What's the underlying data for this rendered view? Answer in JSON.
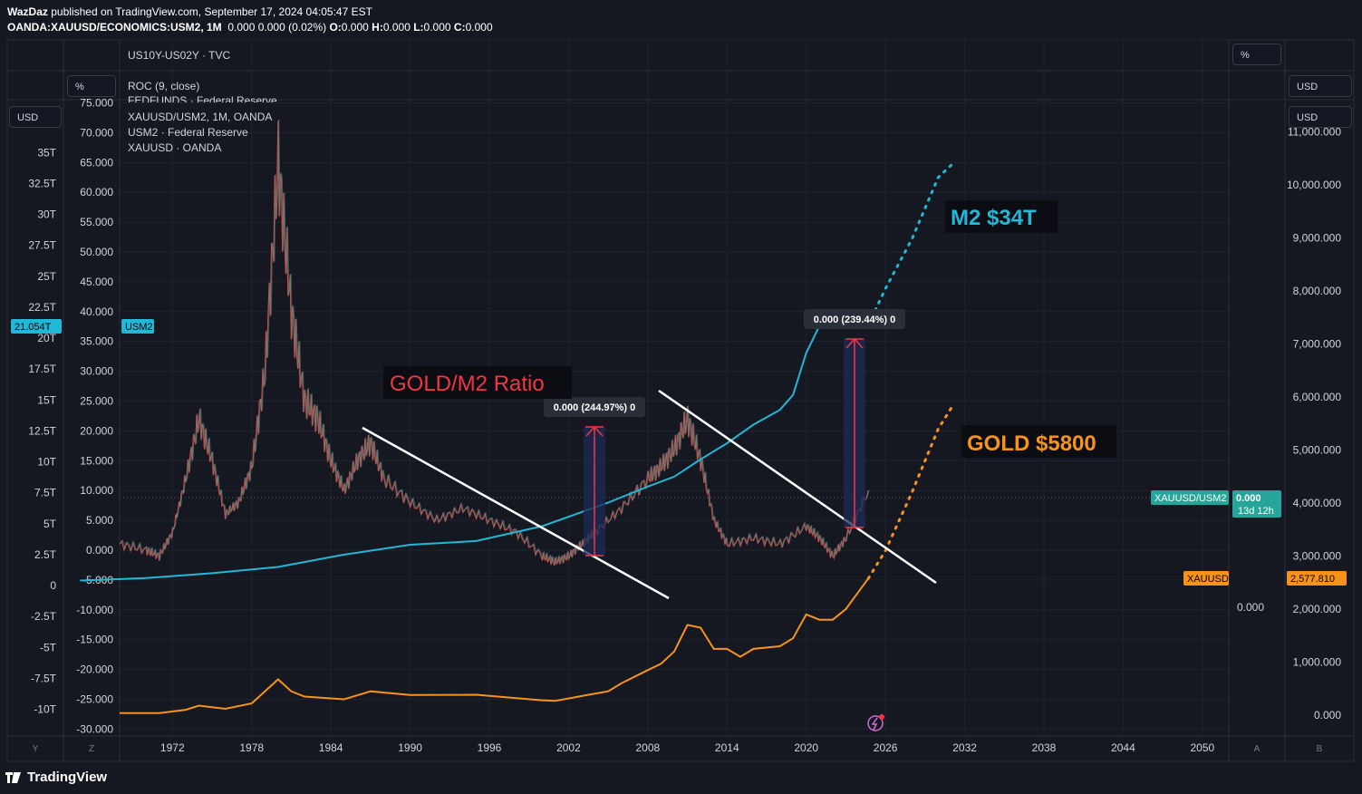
{
  "header": {
    "author": "WazDaz",
    "published": "published on TradingView.com, September 17, 2024 04:05:47 EST",
    "symbol": "OANDA:XAUUSD/ECONOMICS:USM2, 1M",
    "ohlc": "0.000 0.000 (0.02%)",
    "o_label": "O:",
    "o_value": "0.000",
    "h_label": "H:",
    "h_value": "0.000",
    "l_label": "L:",
    "l_value": "0.000",
    "c_label": "C:",
    "c_value": "0.000"
  },
  "panes": {
    "top_indicator": "US10Y-US02Y · TVC",
    "roc_indicator": "ROC (9, close)",
    "fedfunds_indicator": "FEDFUNDS · Federal Reserve",
    "main_series": "XAUUSD/USM2, 1M, OANDA",
    "m2_series": "USM2 · Federal Reserve",
    "gold_series": "XAUUSD · OANDA"
  },
  "buttons": {
    "pct_top_right": "%",
    "pct_left": "%",
    "usd_left": "USD",
    "usd_right_1": "USD",
    "usd_right_2": "USD"
  },
  "axes": {
    "m2_ticks": [
      "35T",
      "32.5T",
      "30T",
      "27.5T",
      "25T",
      "22.5T",
      "20T",
      "17.5T",
      "15T",
      "12.5T",
      "10T",
      "7.5T",
      "5T",
      "2.5T",
      "0",
      "-2.5T",
      "-5T",
      "-7.5T",
      "-10T"
    ],
    "ratio_ticks": [
      "75.000",
      "70.000",
      "65.000",
      "60.000",
      "55.000",
      "50.000",
      "45.000",
      "40.000",
      "35.000",
      "30.000",
      "25.000",
      "20.000",
      "15.000",
      "10.000",
      "5.000",
      "0.000",
      "-5.000",
      "-10.000",
      "-15.000",
      "-20.000",
      "-25.000",
      "-30.000"
    ],
    "gold_ticks": [
      "11,000.000",
      "10,000.000",
      "9,000.000",
      "8,000.000",
      "7,000.000",
      "6,000.000",
      "5,000.000",
      "4,000.000",
      "3,000.000",
      "2,000.000",
      "1,000.000",
      "0.000"
    ],
    "x_ticks": [
      "1972",
      "1978",
      "1984",
      "1990",
      "1996",
      "2002",
      "2008",
      "2014",
      "2020",
      "2026",
      "2032",
      "2038",
      "2044",
      "2050"
    ],
    "zero_label": "0.000",
    "corner_y": "Y",
    "corner_z": "Z",
    "corner_a": "A",
    "corner_b": "B"
  },
  "tags": {
    "m2_value": "21.054T",
    "m2_name": "USM2",
    "ratio_name": "XAUUSD/USM2",
    "ratio_value": "0.000",
    "ratio_countdown": "13d 12h",
    "gold_name": "XAUUSD",
    "gold_value": "2,577.810"
  },
  "annotations": {
    "ratio_title": "GOLD/M2 Ratio",
    "m2_target": "M2 $34T",
    "gold_target": "GOLD $5800",
    "measure_1": "0.000 (244.97%) 0",
    "measure_2": "0.000 (239.44%) 0"
  },
  "footer": {
    "brand": "TradingView"
  },
  "colors": {
    "background": "#151821",
    "m2": "#22b7d6",
    "gold": "#f7931a",
    "ratio_up": "#26a69a",
    "ratio_down": "#ef5350",
    "measure": "#f23645",
    "ratio_title": "#f23645",
    "trendline": "#ffffff"
  },
  "chart_data": {
    "type": "line",
    "x_axis": "year",
    "series": [
      {
        "name": "XAUUSD/USM2",
        "axis": "ratio",
        "x": [
          1968,
          1970,
          1971,
          1972,
          1973,
          1974,
          1975,
          1976,
          1977,
          1978,
          1979,
          1980,
          1981,
          1982,
          1983,
          1984,
          1985,
          1986,
          1987,
          1988,
          1990,
          1992,
          1994,
          1996,
          1998,
          2000,
          2001,
          2002,
          2003,
          2004,
          2006,
          2008,
          2009,
          2010,
          2011,
          2012,
          2013,
          2014,
          2016,
          2018,
          2020,
          2021,
          2022,
          2023,
          2024.7
        ],
        "values": [
          1,
          0,
          -1,
          3,
          12,
          22,
          15,
          6,
          8,
          14,
          30,
          65,
          40,
          25,
          22,
          15,
          10,
          15,
          18,
          12,
          8,
          5,
          7,
          5,
          3,
          -1,
          -2,
          -1,
          1,
          3,
          7,
          12,
          14,
          17,
          22,
          15,
          5,
          1,
          2,
          1,
          4,
          2,
          -1,
          2,
          10
        ]
      },
      {
        "name": "USM2",
        "axis": "m2",
        "x": [
          1965,
          1970,
          1975,
          1980,
          1985,
          1990,
          1995,
          2000,
          2005,
          2008,
          2010,
          2012,
          2014,
          2016,
          2018,
          2019,
          2020,
          2021,
          2022,
          2023,
          2024.7
        ],
        "values": [
          0.4,
          0.6,
          1.0,
          1.5,
          2.5,
          3.3,
          3.6,
          4.8,
          6.7,
          8.0,
          8.8,
          10.2,
          11.5,
          13.0,
          14.2,
          15.4,
          18.8,
          21.0,
          21.7,
          20.8,
          21.05
        ]
      },
      {
        "name": "XAUUSD",
        "axis": "gold",
        "x": [
          1968,
          1971,
          1973,
          1974,
          1976,
          1978,
          1980,
          1981,
          1982,
          1985,
          1987,
          1990,
          1995,
          2000,
          2001,
          2003,
          2005,
          2006,
          2008,
          2009,
          2010,
          2011,
          2012,
          2013,
          2014,
          2015,
          2016,
          2018,
          2019,
          2020,
          2021,
          2022,
          2023,
          2024.7
        ],
        "values": [
          40,
          40,
          100,
          180,
          120,
          220,
          675,
          450,
          350,
          300,
          450,
          380,
          385,
          280,
          270,
          360,
          450,
          600,
          850,
          970,
          1200,
          1700,
          1650,
          1250,
          1250,
          1100,
          1250,
          1300,
          1450,
          1900,
          1800,
          1800,
          2000,
          2577.81
        ]
      }
    ],
    "projections": [
      {
        "name": "M2 $34T",
        "x": [
          2024.7,
          2026,
          2028,
          2030,
          2031
        ],
        "values": [
          21.05,
          24,
          28,
          33,
          34
        ]
      },
      {
        "name": "GOLD $5800",
        "x": [
          2024.7,
          2026,
          2028,
          2030,
          2031
        ],
        "values": [
          2577.81,
          3100,
          4200,
          5400,
          5800
        ]
      }
    ],
    "ranges": {
      "x": [
        1968,
        2052
      ],
      "ratio": [
        -30,
        75
      ],
      "m2": [
        -10,
        35
      ],
      "gold": [
        0,
        11000
      ]
    }
  }
}
